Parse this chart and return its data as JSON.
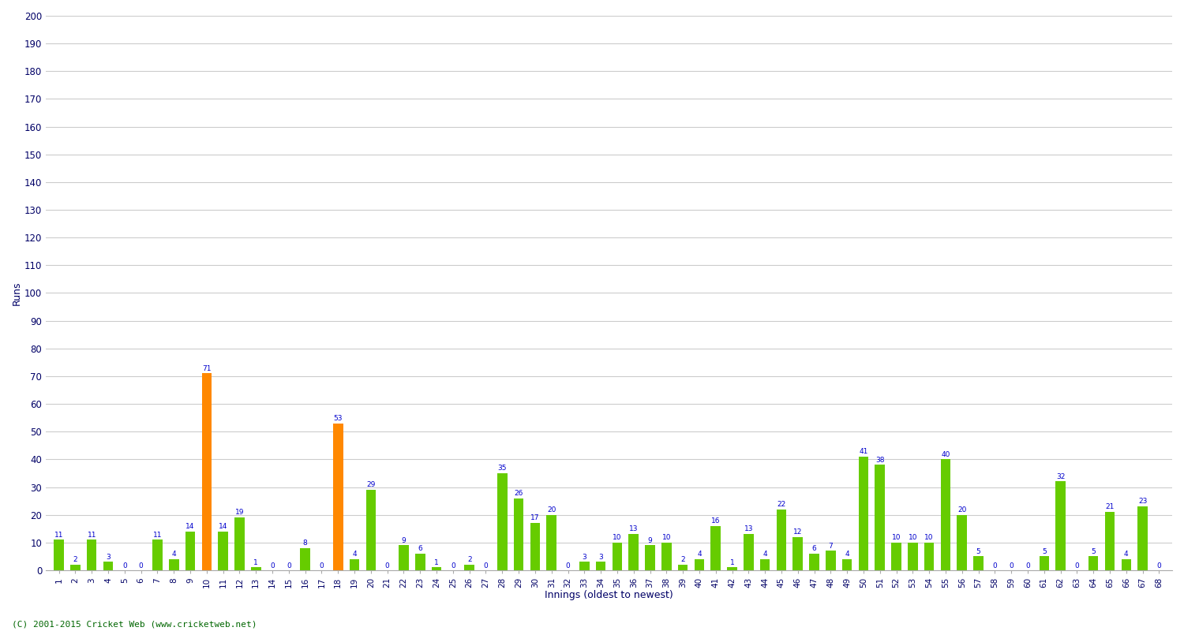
{
  "title": "",
  "xlabel": "Innings (oldest to newest)",
  "ylabel": "Runs",
  "footer": "(C) 2001-2015 Cricket Web (www.cricketweb.net)",
  "ylim": [
    0,
    200
  ],
  "yticks": [
    0,
    10,
    20,
    30,
    40,
    50,
    60,
    70,
    80,
    90,
    100,
    110,
    120,
    130,
    140,
    150,
    160,
    170,
    180,
    190,
    200
  ],
  "values": [
    11,
    2,
    11,
    3,
    0,
    0,
    11,
    4,
    14,
    71,
    14,
    19,
    1,
    0,
    0,
    8,
    0,
    53,
    4,
    29,
    0,
    9,
    6,
    1,
    0,
    2,
    0,
    35,
    26,
    17,
    20,
    0,
    3,
    3,
    10,
    13,
    9,
    10,
    2,
    4,
    16,
    1,
    13,
    4,
    22,
    12,
    6,
    7,
    4,
    41,
    38,
    10,
    10,
    10,
    40,
    20,
    5,
    0,
    0,
    0,
    5,
    32,
    0,
    5,
    21,
    4,
    23,
    0
  ],
  "labels": [
    "1",
    "2",
    "3",
    "4",
    "5",
    "6",
    "7",
    "8",
    "9",
    "10",
    "11",
    "12",
    "13",
    "14",
    "15",
    "16",
    "17",
    "18",
    "19",
    "20",
    "21",
    "22",
    "23",
    "24",
    "25",
    "26",
    "27",
    "28",
    "29",
    "30",
    "31",
    "32",
    "33",
    "34",
    "35",
    "36",
    "37",
    "38",
    "39",
    "40",
    "41",
    "42",
    "43",
    "44",
    "45",
    "46",
    "47",
    "48",
    "49",
    "50",
    "51",
    "52",
    "53",
    "54",
    "55",
    "56",
    "57",
    "58",
    "59",
    "60",
    "61",
    "62",
    "63",
    "64",
    "65",
    "66",
    "67",
    "68"
  ],
  "orange_indices": [
    9,
    17
  ],
  "green_color": "#66cc00",
  "orange_color": "#ff8800",
  "bar_label_color": "#0000cc",
  "bg_color": "#ffffff",
  "grid_color": "#cccccc",
  "axis_label_color": "#000066",
  "tick_label_color": "#000066",
  "footer_color": "#006600"
}
